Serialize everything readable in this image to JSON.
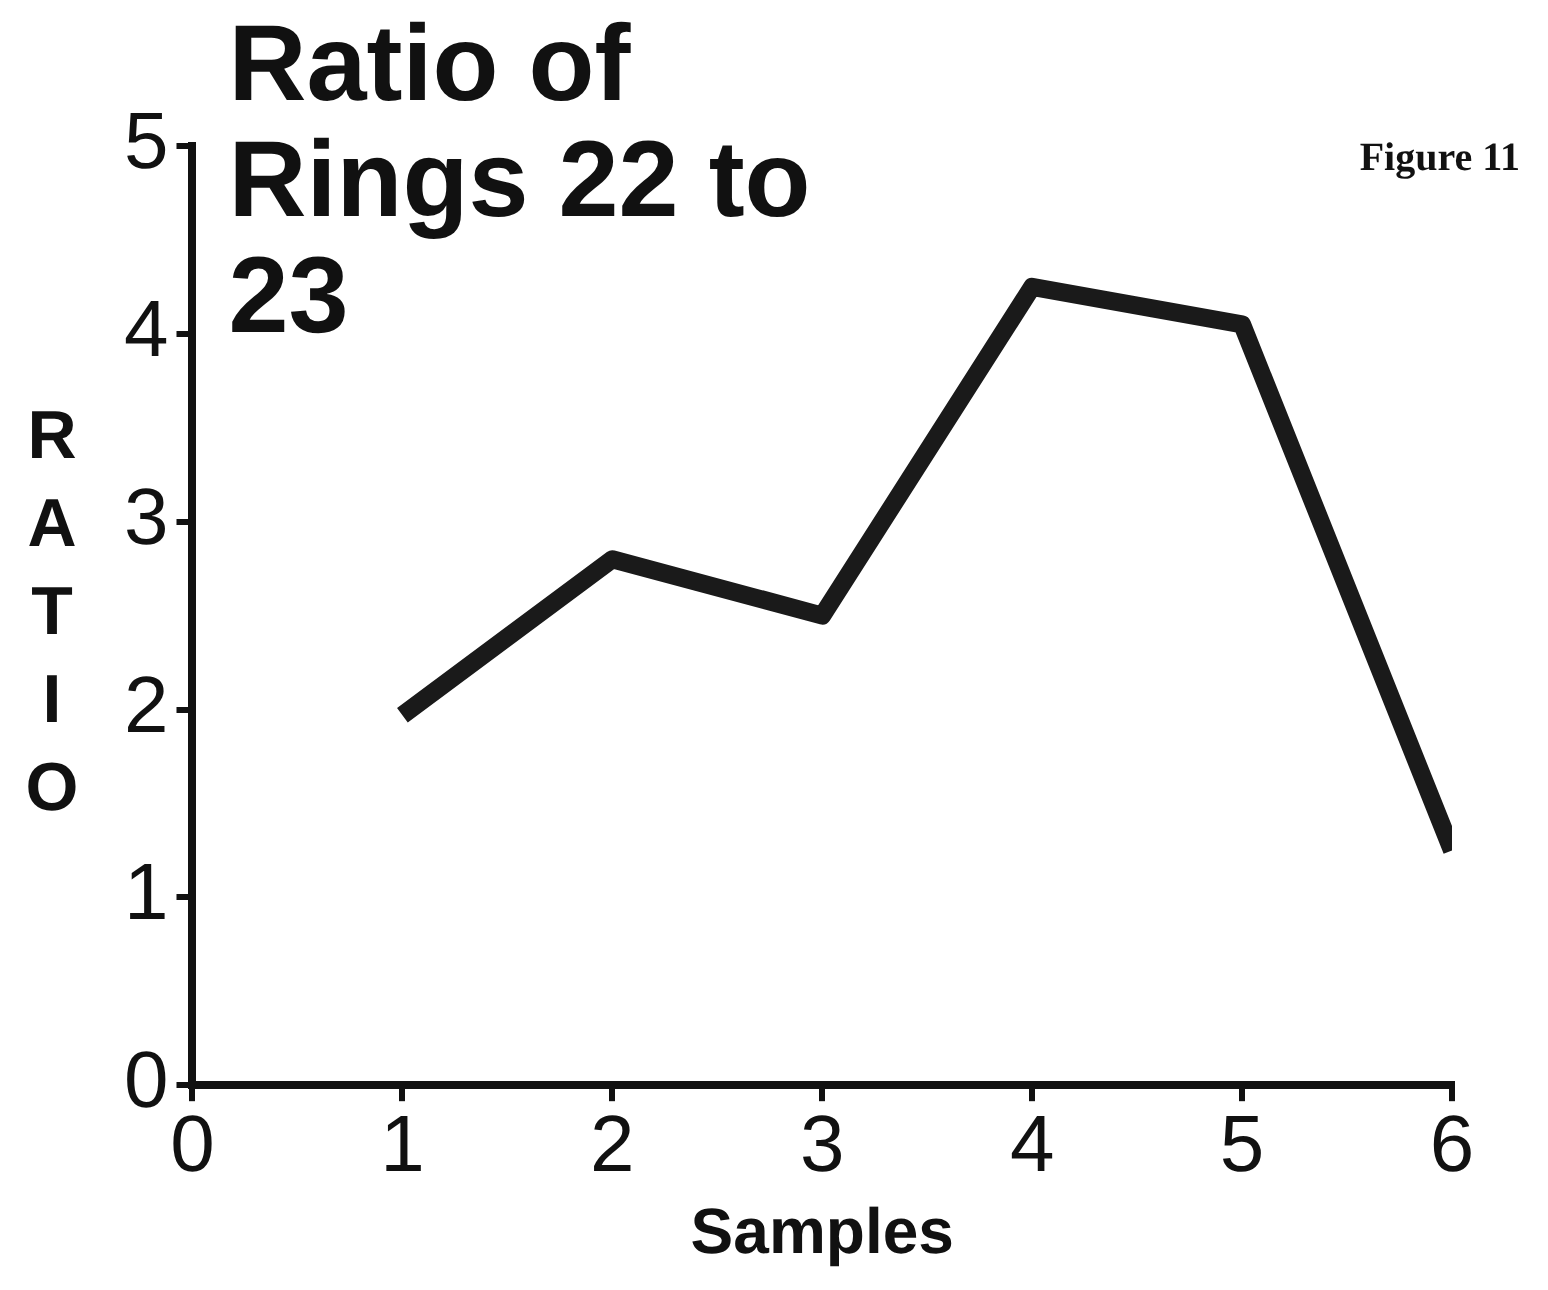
{
  "chart_data": {
    "type": "line",
    "title": "Ratio of Rings 22 to 23",
    "xlabel": "Samples",
    "ylabel": "RATIO",
    "annotations": [
      "Figure 11"
    ],
    "x": [
      1,
      2,
      3,
      4,
      5,
      6
    ],
    "series": [
      {
        "color": "#1a1a1a",
        "values": [
          1.97,
          2.8,
          2.5,
          4.25,
          4.05,
          1.25
        ]
      }
    ],
    "xlim": [
      0,
      6
    ],
    "xticks": [
      0,
      1,
      2,
      3,
      4,
      5,
      6
    ],
    "ylim": [
      0,
      5
    ],
    "yticks": [
      0,
      1,
      2,
      3,
      4,
      5
    ],
    "grid": false,
    "legend": false,
    "marker": "none",
    "line_style": "solid"
  }
}
